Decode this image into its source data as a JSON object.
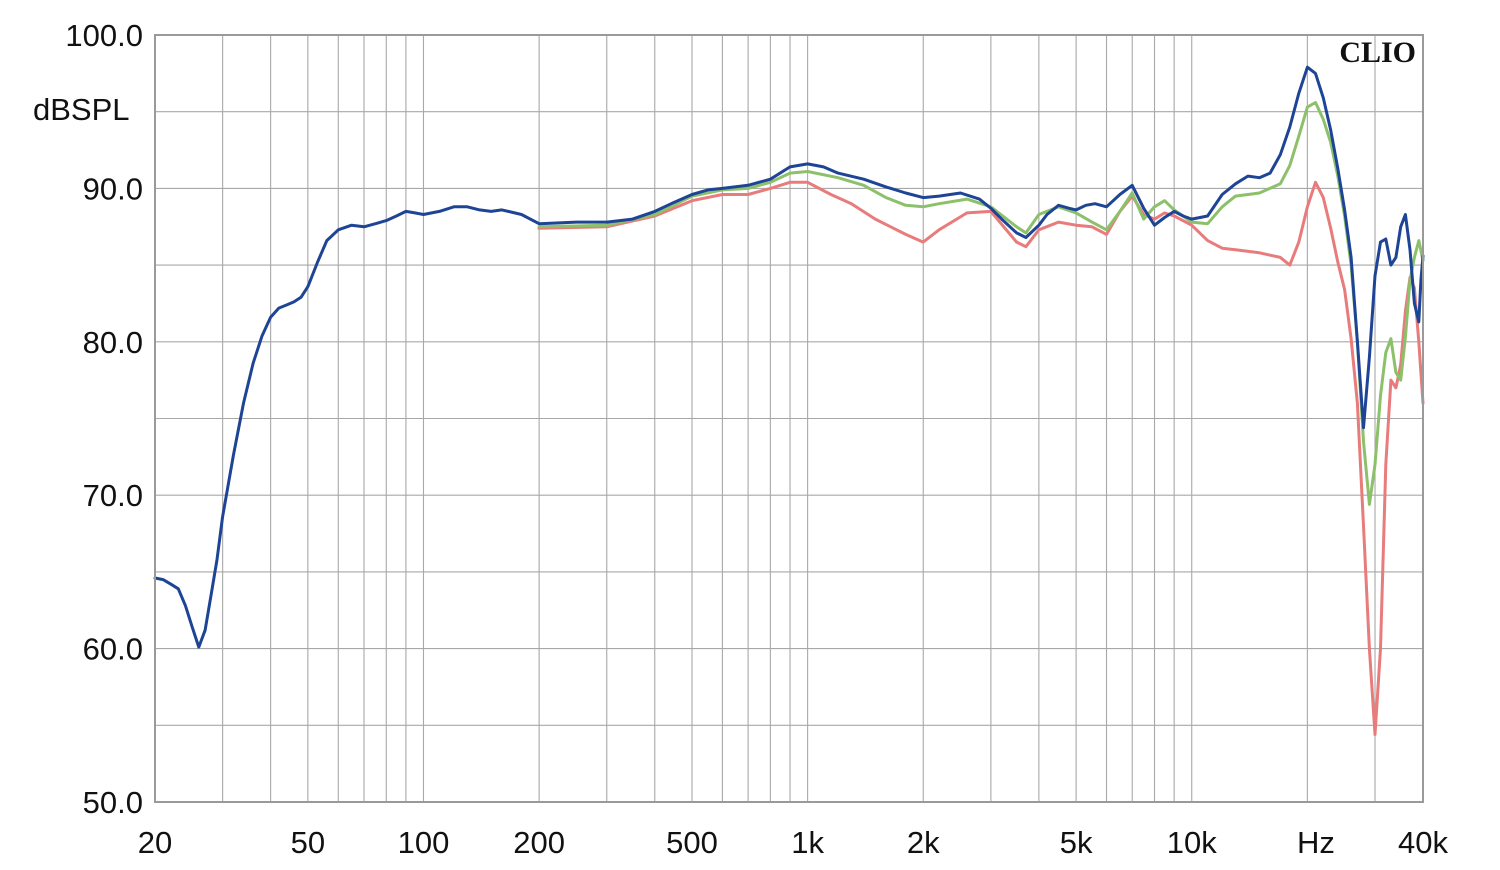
{
  "chart_data": {
    "type": "line",
    "brand": "CLIO",
    "ylabel": "dBSPL",
    "xlabel": "Hz",
    "x_scale": "log",
    "xlim": [
      20,
      40000
    ],
    "ylim": [
      50,
      100
    ],
    "grid": true,
    "y_ticks": [
      {
        "value": 50,
        "label": "50.0"
      },
      {
        "value": 60,
        "label": "60.0"
      },
      {
        "value": 70,
        "label": "70.0"
      },
      {
        "value": 80,
        "label": "80.0"
      },
      {
        "value": 90,
        "label": "90.0"
      },
      {
        "value": 100,
        "label": "100.0"
      }
    ],
    "x_ticks": [
      {
        "value": 20,
        "label": "20"
      },
      {
        "value": 50,
        "label": "50"
      },
      {
        "value": 100,
        "label": "100"
      },
      {
        "value": 200,
        "label": "200"
      },
      {
        "value": 500,
        "label": "500"
      },
      {
        "value": 1000,
        "label": "1k"
      },
      {
        "value": 2000,
        "label": "2k"
      },
      {
        "value": 5000,
        "label": "5k"
      },
      {
        "value": 10000,
        "label": "10k"
      },
      {
        "value": 40000,
        "label": "40k"
      }
    ],
    "series": [
      {
        "color": "#e87b7b",
        "points": [
          [
            200,
            87.4
          ],
          [
            300,
            87.5
          ],
          [
            400,
            88.2
          ],
          [
            500,
            89.2
          ],
          [
            600,
            89.6
          ],
          [
            700,
            89.6
          ],
          [
            800,
            90.0
          ],
          [
            900,
            90.4
          ],
          [
            1000,
            90.4
          ],
          [
            1150,
            89.6
          ],
          [
            1300,
            89.0
          ],
          [
            1500,
            88.0
          ],
          [
            1800,
            87.0
          ],
          [
            2000,
            86.5
          ],
          [
            2200,
            87.3
          ],
          [
            2600,
            88.4
          ],
          [
            3000,
            88.5
          ],
          [
            3500,
            86.5
          ],
          [
            3700,
            86.2
          ],
          [
            4000,
            87.3
          ],
          [
            4500,
            87.8
          ],
          [
            5000,
            87.6
          ],
          [
            5500,
            87.5
          ],
          [
            6000,
            87.0
          ],
          [
            6500,
            88.5
          ],
          [
            7000,
            89.5
          ],
          [
            7500,
            88.3
          ],
          [
            8000,
            88.0
          ],
          [
            8500,
            88.4
          ],
          [
            9000,
            88.2
          ],
          [
            10000,
            87.6
          ],
          [
            11000,
            86.6
          ],
          [
            12000,
            86.1
          ],
          [
            13000,
            86.0
          ],
          [
            15000,
            85.8
          ],
          [
            17000,
            85.5
          ],
          [
            18000,
            85.0
          ],
          [
            19000,
            86.5
          ],
          [
            20000,
            88.8
          ],
          [
            21000,
            90.4
          ],
          [
            22000,
            89.4
          ],
          [
            23000,
            87.4
          ],
          [
            24000,
            85.2
          ],
          [
            25000,
            83.4
          ],
          [
            26000,
            80.2
          ],
          [
            27000,
            76.0
          ],
          [
            28000,
            68.0
          ],
          [
            29000,
            60.0
          ],
          [
            30000,
            54.4
          ],
          [
            31000,
            60.0
          ],
          [
            32000,
            72.0
          ],
          [
            33000,
            77.5
          ],
          [
            34000,
            77.0
          ],
          [
            35000,
            78.5
          ],
          [
            36000,
            82.0
          ],
          [
            37000,
            84.2
          ],
          [
            38000,
            83.5
          ],
          [
            39000,
            80.0
          ],
          [
            40000,
            76.0
          ]
        ]
      },
      {
        "color": "#8cc06a",
        "points": [
          [
            200,
            87.5
          ],
          [
            300,
            87.6
          ],
          [
            400,
            88.3
          ],
          [
            500,
            89.5
          ],
          [
            600,
            89.9
          ],
          [
            700,
            90.0
          ],
          [
            800,
            90.4
          ],
          [
            900,
            91.0
          ],
          [
            1000,
            91.1
          ],
          [
            1200,
            90.7
          ],
          [
            1400,
            90.2
          ],
          [
            1600,
            89.4
          ],
          [
            1800,
            88.9
          ],
          [
            2000,
            88.8
          ],
          [
            2200,
            89.0
          ],
          [
            2600,
            89.3
          ],
          [
            3000,
            88.8
          ],
          [
            3500,
            87.5
          ],
          [
            3700,
            87.1
          ],
          [
            4000,
            88.3
          ],
          [
            4500,
            88.8
          ],
          [
            5000,
            88.4
          ],
          [
            5500,
            87.8
          ],
          [
            6000,
            87.3
          ],
          [
            6500,
            88.5
          ],
          [
            7000,
            89.7
          ],
          [
            7500,
            88.0
          ],
          [
            8000,
            88.8
          ],
          [
            8500,
            89.2
          ],
          [
            9000,
            88.6
          ],
          [
            10000,
            87.8
          ],
          [
            11000,
            87.7
          ],
          [
            12000,
            88.8
          ],
          [
            13000,
            89.5
          ],
          [
            15000,
            89.7
          ],
          [
            17000,
            90.3
          ],
          [
            18000,
            91.5
          ],
          [
            19000,
            93.4
          ],
          [
            20000,
            95.3
          ],
          [
            21000,
            95.6
          ],
          [
            22000,
            94.5
          ],
          [
            23000,
            93.0
          ],
          [
            24000,
            90.8
          ],
          [
            25000,
            88.2
          ],
          [
            26000,
            85.0
          ],
          [
            27000,
            80.0
          ],
          [
            28000,
            73.5
          ],
          [
            29000,
            69.4
          ],
          [
            30000,
            72.0
          ],
          [
            31000,
            76.5
          ],
          [
            32000,
            79.3
          ],
          [
            33000,
            80.2
          ],
          [
            34000,
            78.0
          ],
          [
            35000,
            77.5
          ],
          [
            36000,
            80.3
          ],
          [
            37000,
            84.0
          ],
          [
            38000,
            85.5
          ],
          [
            39000,
            86.6
          ],
          [
            40000,
            85.3
          ]
        ]
      },
      {
        "color": "#1e4496",
        "points": [
          [
            20,
            64.6
          ],
          [
            21,
            64.5
          ],
          [
            22,
            64.2
          ],
          [
            23,
            63.9
          ],
          [
            24,
            62.8
          ],
          [
            25,
            61.4
          ],
          [
            26,
            60.1
          ],
          [
            27,
            61.2
          ],
          [
            28,
            63.5
          ],
          [
            29,
            65.8
          ],
          [
            30,
            68.6
          ],
          [
            32,
            72.6
          ],
          [
            34,
            76.0
          ],
          [
            36,
            78.6
          ],
          [
            38,
            80.4
          ],
          [
            40,
            81.6
          ],
          [
            42,
            82.2
          ],
          [
            44,
            82.4
          ],
          [
            46,
            82.6
          ],
          [
            48,
            82.9
          ],
          [
            50,
            83.6
          ],
          [
            53,
            85.2
          ],
          [
            56,
            86.6
          ],
          [
            60,
            87.3
          ],
          [
            65,
            87.6
          ],
          [
            70,
            87.5
          ],
          [
            75,
            87.7
          ],
          [
            80,
            87.9
          ],
          [
            85,
            88.2
          ],
          [
            90,
            88.5
          ],
          [
            95,
            88.4
          ],
          [
            100,
            88.3
          ],
          [
            110,
            88.5
          ],
          [
            120,
            88.8
          ],
          [
            130,
            88.8
          ],
          [
            140,
            88.6
          ],
          [
            150,
            88.5
          ],
          [
            160,
            88.6
          ],
          [
            180,
            88.3
          ],
          [
            200,
            87.7
          ],
          [
            250,
            87.8
          ],
          [
            300,
            87.8
          ],
          [
            350,
            88.0
          ],
          [
            400,
            88.5
          ],
          [
            450,
            89.1
          ],
          [
            500,
            89.6
          ],
          [
            550,
            89.9
          ],
          [
            600,
            90.0
          ],
          [
            700,
            90.2
          ],
          [
            800,
            90.6
          ],
          [
            900,
            91.4
          ],
          [
            1000,
            91.6
          ],
          [
            1100,
            91.4
          ],
          [
            1200,
            91.0
          ],
          [
            1400,
            90.6
          ],
          [
            1600,
            90.1
          ],
          [
            1800,
            89.7
          ],
          [
            2000,
            89.4
          ],
          [
            2200,
            89.5
          ],
          [
            2500,
            89.7
          ],
          [
            2800,
            89.3
          ],
          [
            3000,
            88.7
          ],
          [
            3200,
            88.0
          ],
          [
            3500,
            87.1
          ],
          [
            3700,
            86.8
          ],
          [
            4000,
            87.6
          ],
          [
            4200,
            88.3
          ],
          [
            4500,
            88.9
          ],
          [
            4800,
            88.7
          ],
          [
            5000,
            88.6
          ],
          [
            5300,
            88.9
          ],
          [
            5600,
            89.0
          ],
          [
            6000,
            88.8
          ],
          [
            6500,
            89.6
          ],
          [
            7000,
            90.2
          ],
          [
            7500,
            88.7
          ],
          [
            8000,
            87.6
          ],
          [
            8500,
            88.1
          ],
          [
            9000,
            88.5
          ],
          [
            9500,
            88.2
          ],
          [
            10000,
            88.0
          ],
          [
            11000,
            88.2
          ],
          [
            12000,
            89.6
          ],
          [
            13000,
            90.3
          ],
          [
            14000,
            90.8
          ],
          [
            15000,
            90.7
          ],
          [
            16000,
            91.0
          ],
          [
            17000,
            92.2
          ],
          [
            18000,
            94.0
          ],
          [
            19000,
            96.2
          ],
          [
            20000,
            97.9
          ],
          [
            21000,
            97.5
          ],
          [
            22000,
            95.9
          ],
          [
            23000,
            93.8
          ],
          [
            24000,
            91.3
          ],
          [
            25000,
            88.6
          ],
          [
            26000,
            85.5
          ],
          [
            27000,
            80.0
          ],
          [
            28000,
            74.4
          ],
          [
            29000,
            79.0
          ],
          [
            30000,
            84.3
          ],
          [
            31000,
            86.5
          ],
          [
            32000,
            86.7
          ],
          [
            33000,
            85.0
          ],
          [
            34000,
            85.5
          ],
          [
            35000,
            87.5
          ],
          [
            36000,
            88.3
          ],
          [
            37000,
            86.0
          ],
          [
            38000,
            82.5
          ],
          [
            39000,
            81.3
          ],
          [
            39500,
            84.0
          ],
          [
            40000,
            85.6
          ]
        ]
      }
    ]
  }
}
